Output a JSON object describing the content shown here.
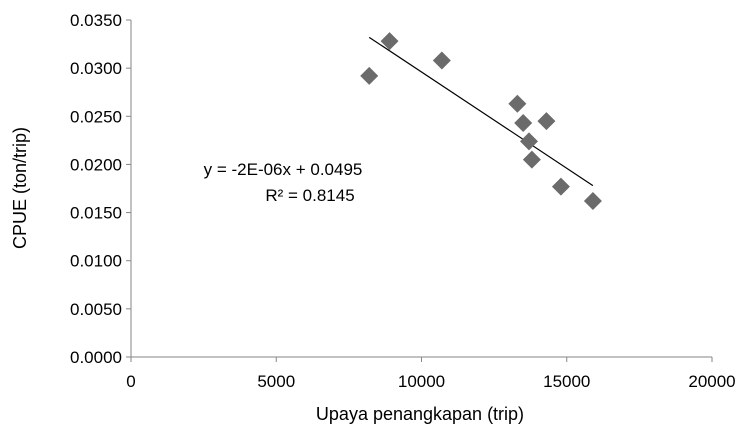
{
  "chart_data": {
    "type": "scatter",
    "title": "",
    "xlabel": "Upaya penangkapan (trip)",
    "ylabel": "CPUE (ton/trip)",
    "xlim": [
      0,
      20000
    ],
    "ylim": [
      0,
      0.035
    ],
    "x_ticks": [
      "0",
      "5000",
      "10000",
      "15000",
      "20000"
    ],
    "y_ticks": [
      "0.0000",
      "0.0050",
      "0.0100",
      "0.0150",
      "0.0200",
      "0.0250",
      "0.0300",
      "0.0350"
    ],
    "grid": false,
    "legend": "none",
    "marker": "diamond",
    "marker_color": "#6b6b6b",
    "trendline_color": "#000000",
    "points": [
      {
        "x": 8200,
        "y": 0.0292
      },
      {
        "x": 8900,
        "y": 0.0328
      },
      {
        "x": 10700,
        "y": 0.0308
      },
      {
        "x": 13300,
        "y": 0.0263
      },
      {
        "x": 13500,
        "y": 0.0243
      },
      {
        "x": 13700,
        "y": 0.0224
      },
      {
        "x": 13800,
        "y": 0.0205
      },
      {
        "x": 14300,
        "y": 0.0245
      },
      {
        "x": 14800,
        "y": 0.0177
      },
      {
        "x": 15900,
        "y": 0.0162
      }
    ],
    "trendline": {
      "type": "linear",
      "x_start": 8200,
      "x_end": 15900,
      "y_start": 0.0332,
      "y_end": 0.0178
    },
    "annotations": {
      "equation": "y = -2E-06x + 0.0495",
      "r_squared": "R² = 0.8145"
    }
  }
}
